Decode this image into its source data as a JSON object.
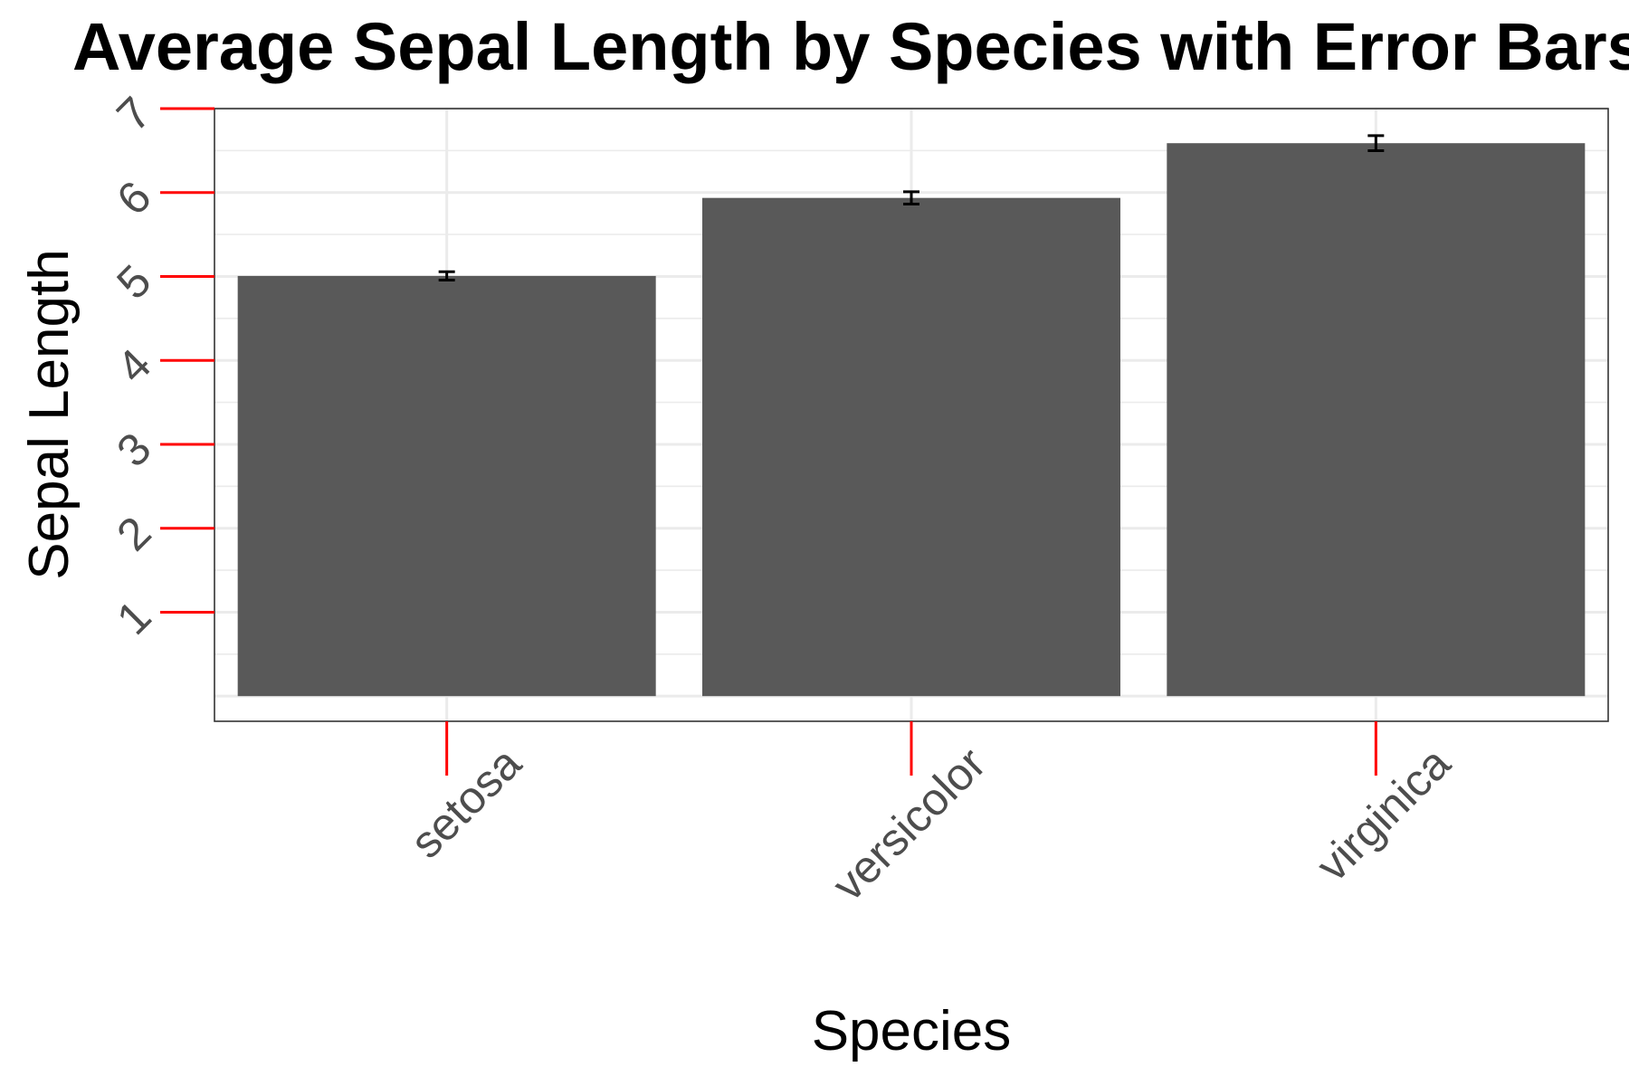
{
  "chart_data": {
    "type": "bar",
    "title": "Average Sepal Length by Species with Error Bars",
    "xlabel": "Species",
    "ylabel": "Sepal Length",
    "categories": [
      "setosa",
      "versicolor",
      "virginica"
    ],
    "values": [
      5.006,
      5.936,
      6.588
    ],
    "error": [
      0.05,
      0.073,
      0.09
    ],
    "ylim": [
      -0.3,
      7
    ],
    "yticks": [
      1,
      2,
      3,
      4,
      5,
      6,
      7
    ],
    "grid": true,
    "bar_color": "#595959",
    "tick_color": "#ff0000",
    "errorbar_color": "#000000"
  }
}
